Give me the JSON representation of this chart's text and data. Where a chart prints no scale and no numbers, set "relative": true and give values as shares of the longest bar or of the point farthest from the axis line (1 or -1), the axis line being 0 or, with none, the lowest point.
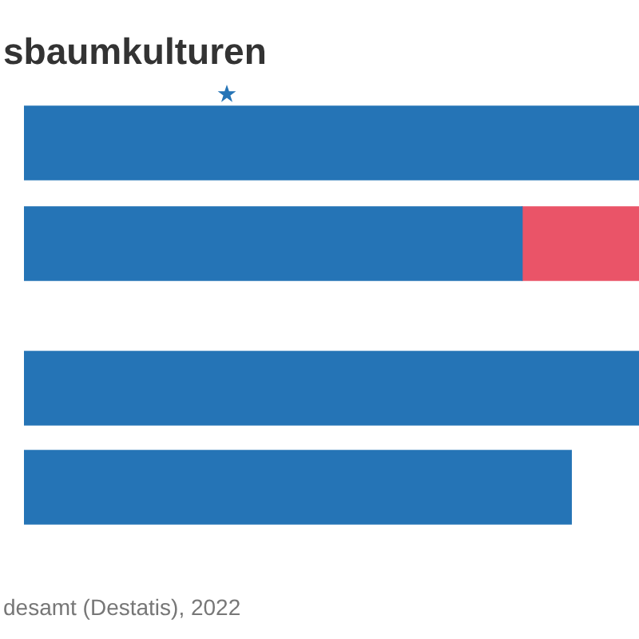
{
  "chart_data": [
    {
      "type": "bar",
      "orientation": "horizontal",
      "stacked": true,
      "relative": true,
      "title": "sbaumkulturen",
      "categories": [
        null,
        null
      ],
      "series": [
        {
          "color": "#2574b6",
          "values": [
            1,
            0.81
          ]
        },
        {
          "color": "#ea5468",
          "values": [
            null,
            0.19
          ]
        }
      ]
    },
    {
      "type": "bar",
      "orientation": "horizontal",
      "relative": true,
      "categories": [
        null,
        null
      ],
      "values": [
        1,
        0.89
      ],
      "color": "#2574b6",
      "annotations": [
        "desamt (Destatis), 2022"
      ]
    }
  ]
}
